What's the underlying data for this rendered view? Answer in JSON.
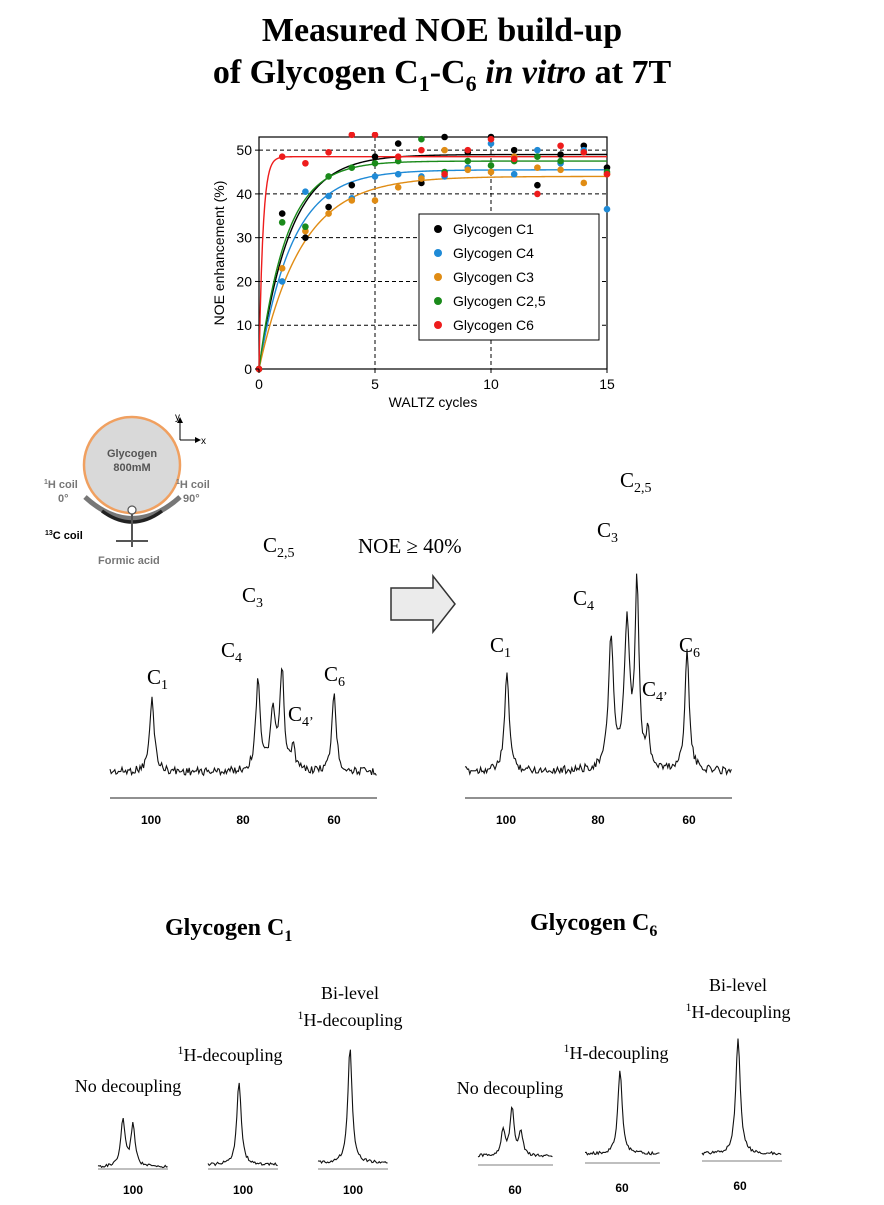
{
  "title": {
    "line1": "Measured NOE build-up",
    "line2_prefix": "of Glycogen C",
    "line2_sub1": "1",
    "line2_dash": "-C",
    "line2_sub2": "6",
    "line2_italic": " in vitro",
    "line2_suffix": " at 7T"
  },
  "chart_data": {
    "type": "scatter",
    "title": "",
    "xlabel": "WALTZ cycles",
    "ylabel": "NOE enhancement (%)",
    "xlim": [
      0,
      15
    ],
    "ylim": [
      0,
      53
    ],
    "xticks": [
      "0",
      "5",
      "10",
      "15"
    ],
    "yticks": [
      "0",
      "10",
      "20",
      "30",
      "40",
      "50"
    ],
    "grid": "dashed at x=5,10 and y=10..50",
    "legend_position": "right-middle",
    "series": [
      {
        "name": "Glycogen C1",
        "color": "#000000",
        "fit_max": 49,
        "fit_rate": 0.75,
        "x": [
          0,
          1,
          2,
          3,
          4,
          5,
          6,
          7,
          8,
          9,
          10,
          11,
          12,
          13,
          14,
          15
        ],
        "y": [
          0,
          35.5,
          30,
          37,
          42,
          48.5,
          51.5,
          42.5,
          53,
          49.5,
          53,
          50,
          42,
          49,
          51,
          46
        ]
      },
      {
        "name": "Glycogen C4",
        "color": "#1f8ad6",
        "fit_max": 45.5,
        "fit_rate": 0.7,
        "x": [
          0,
          1,
          2,
          3,
          4,
          5,
          6,
          7,
          8,
          9,
          10,
          11,
          12,
          13,
          14,
          15
        ],
        "y": [
          0,
          20,
          40.5,
          39.5,
          39,
          44,
          44.5,
          44,
          44,
          46,
          51.5,
          44.5,
          50,
          47,
          50,
          36.5
        ]
      },
      {
        "name": "Glycogen C3",
        "color": "#e08c14",
        "fit_max": 44,
        "fit_rate": 0.55,
        "x": [
          0,
          1,
          2,
          3,
          4,
          5,
          6,
          7,
          8,
          9,
          10,
          11,
          12,
          13,
          14,
          15
        ],
        "y": [
          0,
          23,
          31.5,
          35.5,
          38.5,
          38.5,
          41.5,
          43.5,
          50,
          45.5,
          45,
          48.5,
          46,
          45.5,
          42.5,
          44.5
        ]
      },
      {
        "name": "Glycogen C2,5",
        "color": "#1a8a1a",
        "fit_max": 47.5,
        "fit_rate": 0.85,
        "x": [
          0,
          1,
          2,
          3,
          4,
          5,
          6,
          7,
          8,
          9,
          10,
          11,
          12,
          13,
          14,
          15
        ],
        "y": [
          0,
          33.5,
          32.5,
          44,
          46,
          47,
          47.5,
          52.5,
          45,
          47.5,
          46.5,
          47.5,
          48.5,
          47.5,
          49.5,
          45
        ]
      },
      {
        "name": "Glycogen C6",
        "color": "#ee1c1c",
        "fit_max": 48.5,
        "fit_rate": 6,
        "x": [
          0,
          1,
          2,
          3,
          4,
          5,
          6,
          7,
          8,
          9,
          10,
          11,
          12,
          13,
          14,
          15
        ],
        "y": [
          0,
          48.5,
          47,
          49.5,
          53.5,
          53.5,
          48.5,
          50,
          44.5,
          50,
          52.5,
          48,
          40,
          51,
          49.5,
          44.5
        ]
      }
    ]
  },
  "setup": {
    "phantom_label_1": "Glycogen",
    "phantom_label_2": "800mM",
    "axis_y": "y",
    "axis_x": "x",
    "coil_left_1": "1",
    "coil_left_2": "H coil",
    "coil_left_angle": "0°",
    "coil_right_1": "1",
    "coil_right_2": "H coil",
    "coil_right_angle": "90°",
    "c13_sup": "13",
    "c13_label": "C coil",
    "formic": "Formic acid"
  },
  "arrow_label": "NOE ≥ 40%",
  "spectrum_left": {
    "ticks": [
      "100",
      "80",
      "60"
    ],
    "peaks": {
      "c1": "C",
      "c1_sub": "1",
      "c4": "C",
      "c4_sub": "4",
      "c3": "C",
      "c3_sub": "3",
      "c25": "C",
      "c25_sub": "2,5",
      "c6": "C",
      "c6_sub": "6",
      "c4p": "C",
      "c4p_sub": "4’"
    }
  },
  "spectrum_right": {
    "ticks": [
      "100",
      "80",
      "60"
    ],
    "peaks": {
      "c1": "C",
      "c1_sub": "1",
      "c4": "C",
      "c4_sub": "4",
      "c3": "C",
      "c3_sub": "3",
      "c25": "C",
      "c25_sub": "2,5",
      "c6": "C",
      "c6_sub": "6",
      "c4p": "C",
      "c4p_sub": "4’"
    }
  },
  "bottom_left": {
    "title": "Glycogen C",
    "title_sub": "1",
    "cap_no": "No decoupling",
    "cap_h_sup": "1",
    "cap_h": "H-decoupling",
    "cap_bi_1": "Bi-level",
    "cap_bi_sup": "1",
    "cap_bi_2": "H-decoupling",
    "ticks": [
      "100",
      "100",
      "100"
    ]
  },
  "bottom_right": {
    "title": "Glycogen C",
    "title_sub": "6",
    "cap_no": "No decoupling",
    "cap_h_sup": "1",
    "cap_h": "H-decoupling",
    "cap_bi_1": "Bi-level",
    "cap_bi_sup": "1",
    "cap_bi_2": "H-decoupling",
    "ticks": [
      "60",
      "60",
      "60"
    ]
  }
}
